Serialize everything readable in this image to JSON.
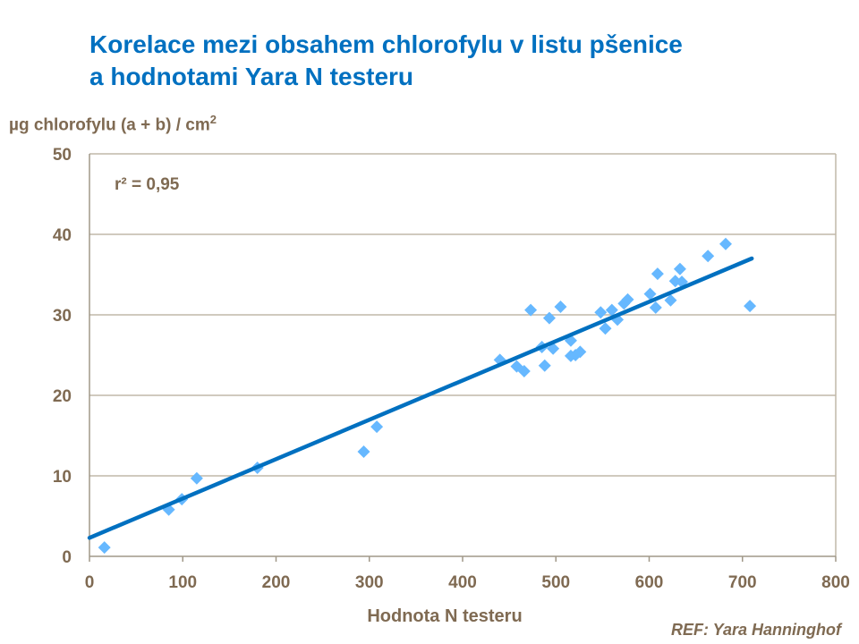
{
  "chart_data": {
    "type": "scatter",
    "title": "Korelace mezi obsahem chlorofylu v listu pšenice a hodnotami Yara N testeru",
    "title_lines": [
      "Korelace mezi obsahem chlorofylu v listu pšenice",
      "a hodnotami Yara N testeru"
    ],
    "xlabel": "Hodnota N testeru",
    "ylabel": "µg chlorofylu (a + b) / cm",
    "ylabel_sup": "2",
    "xlim": [
      0,
      800
    ],
    "ylim": [
      0,
      50
    ],
    "xticks": [
      0,
      100,
      200,
      300,
      400,
      500,
      600,
      700,
      800
    ],
    "yticks": [
      0,
      10,
      20,
      30,
      40,
      50
    ],
    "grid": "horizontal",
    "annotation": "r² = 0,95",
    "marker_color": "#66b8ff",
    "trend_color": "#0070c0",
    "trendline": {
      "x": [
        0,
        710
      ],
      "y": [
        2.3,
        37.0
      ]
    },
    "points": [
      [
        16,
        1.1
      ],
      [
        85,
        5.8
      ],
      [
        99,
        7.1
      ],
      [
        115,
        9.7
      ],
      [
        180,
        11.0
      ],
      [
        294,
        13.0
      ],
      [
        308,
        16.1
      ],
      [
        440,
        24.4
      ],
      [
        458,
        23.6
      ],
      [
        466,
        23.0
      ],
      [
        473,
        30.6
      ],
      [
        485,
        26.0
      ],
      [
        488,
        23.7
      ],
      [
        493,
        29.6
      ],
      [
        497,
        25.8
      ],
      [
        505,
        31.0
      ],
      [
        516,
        26.8
      ],
      [
        516,
        24.9
      ],
      [
        521,
        25.0
      ],
      [
        526,
        25.4
      ],
      [
        548,
        30.3
      ],
      [
        553,
        28.3
      ],
      [
        560,
        30.6
      ],
      [
        566,
        29.4
      ],
      [
        573,
        31.4
      ],
      [
        577,
        31.9
      ],
      [
        601,
        32.6
      ],
      [
        607,
        30.9
      ],
      [
        609,
        35.1
      ],
      [
        623,
        31.8
      ],
      [
        628,
        34.2
      ],
      [
        633,
        35.7
      ],
      [
        635,
        34.1
      ],
      [
        663,
        37.3
      ],
      [
        682,
        38.8
      ],
      [
        708,
        31.1
      ]
    ]
  },
  "reference": "REF: Yara Hanninghof"
}
